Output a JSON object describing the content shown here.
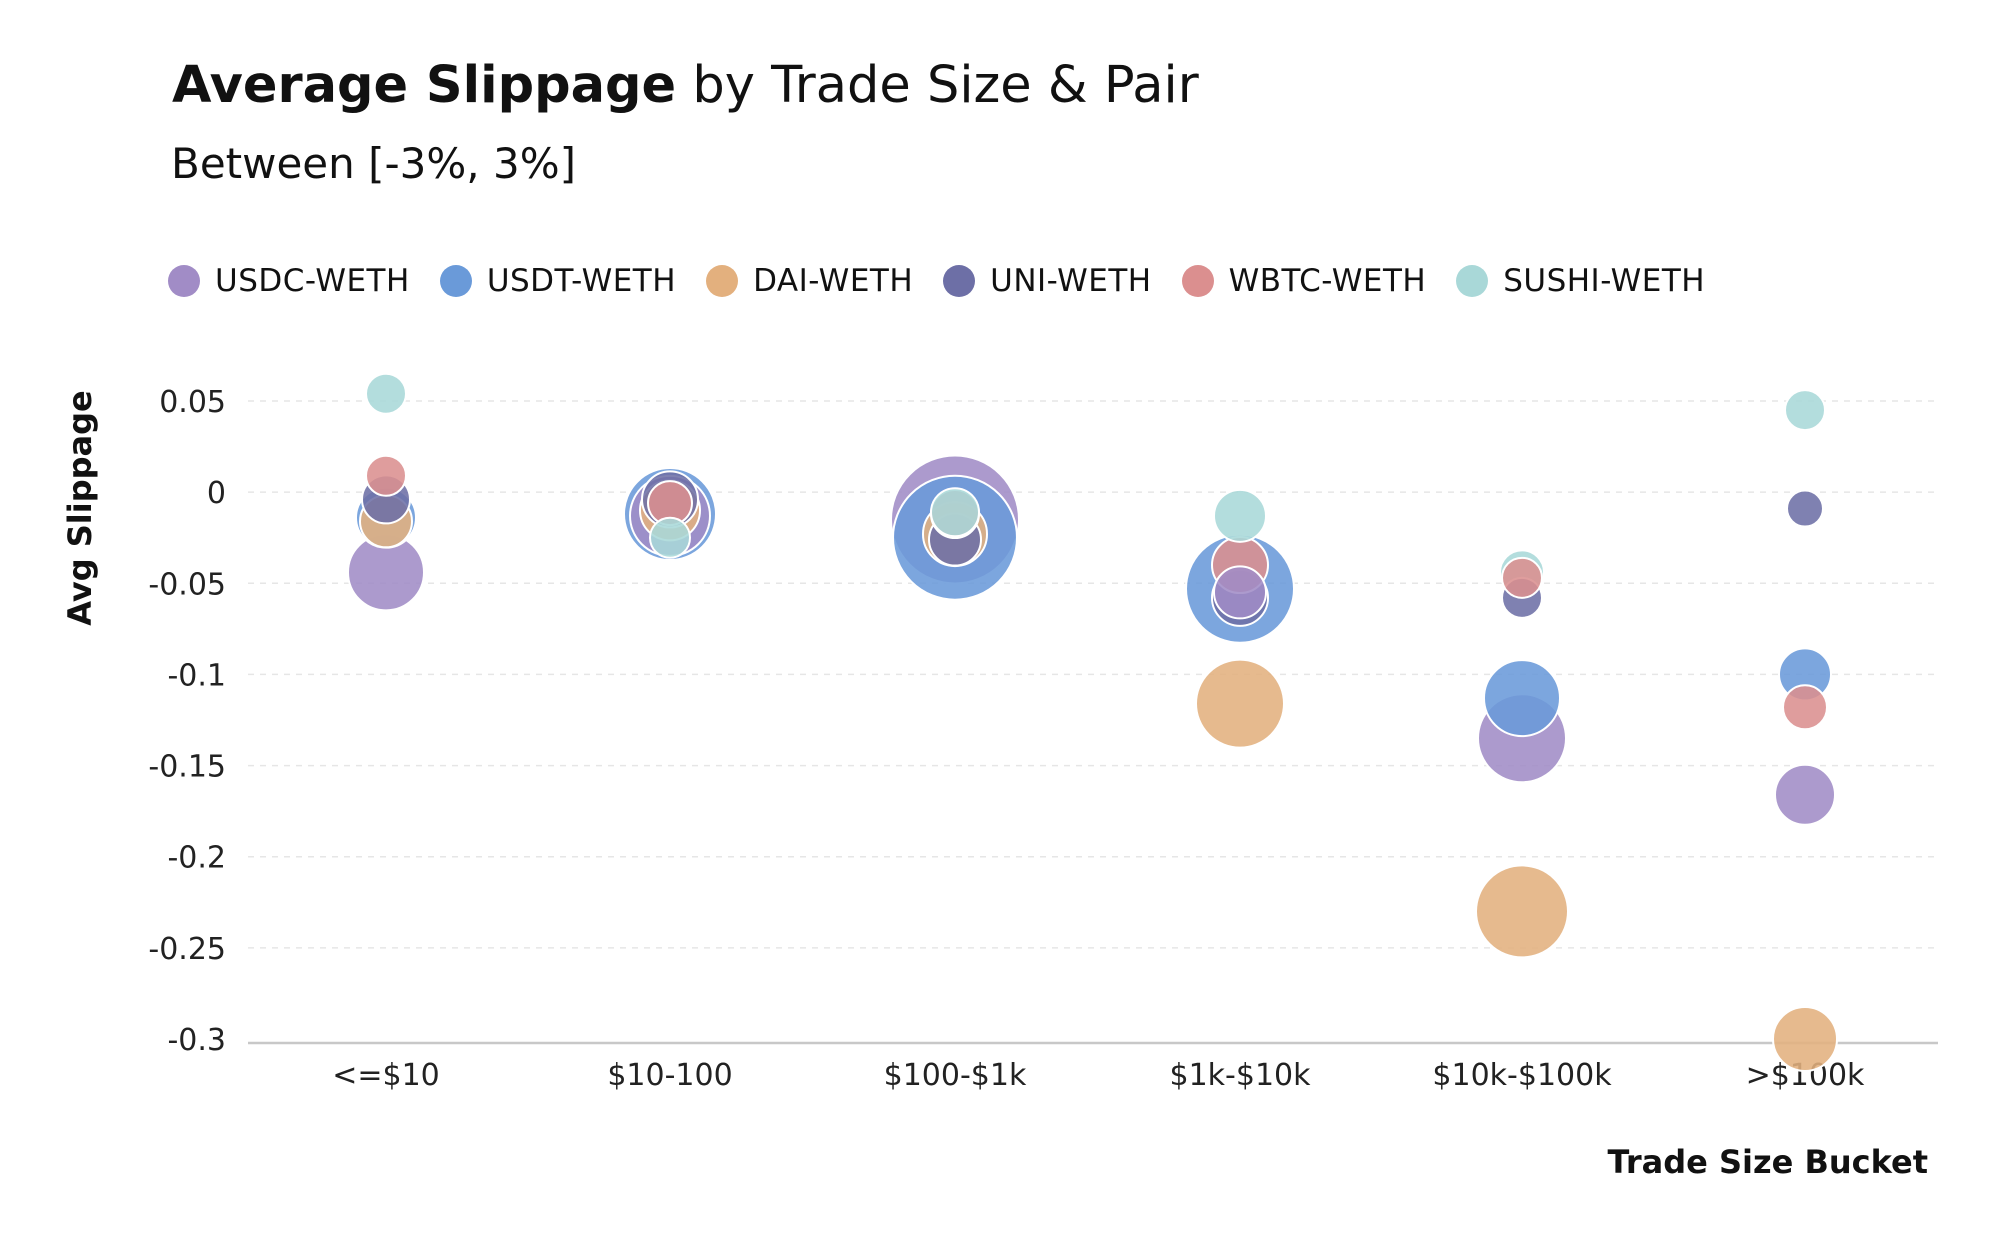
{
  "header": {
    "title_bold": "Average Slippage",
    "title_rest": " by Trade Size & Pair",
    "subtitle": "Between [-3%, 3%]"
  },
  "legend": [
    {
      "label": "USDC-WETH",
      "color": "#a18cc6"
    },
    {
      "label": "USDT-WETH",
      "color": "#6a9ad9"
    },
    {
      "label": "DAI-WETH",
      "color": "#e3b07e"
    },
    {
      "label": "UNI-WETH",
      "color": "#6d6fa6"
    },
    {
      "label": "WBTC-WETH",
      "color": "#db8f8f"
    },
    {
      "label": "SUSHI-WETH",
      "color": "#a9d8d8"
    }
  ],
  "chart_data": {
    "type": "scatter",
    "title": "Average Slippage by Trade Size & Pair",
    "subtitle": "Between [-3%, 3%]",
    "xlabel": "Trade Size Bucket",
    "ylabel": "Avg Slippage",
    "categories": [
      "<=$10",
      "$10-100",
      "$100-$1k",
      "$1k-$10k",
      "$10k-$100k",
      ">$100k"
    ],
    "yticks": [
      "0.05",
      "0",
      "-0.05",
      "-0.1",
      "-0.15",
      "-0.2",
      "-0.25",
      "-0.3"
    ],
    "ylim": [
      -0.3,
      0.05
    ],
    "grid": true,
    "legend_position": "top-left",
    "bubble_size_encoded": true,
    "series": [
      {
        "name": "USDC-WETH",
        "color": "#a18cc6",
        "values": [
          -0.044,
          -0.013,
          -0.015,
          -0.055,
          -0.135,
          -0.166
        ],
        "sizes": [
          38,
          40,
          64,
          26,
          44,
          30
        ]
      },
      {
        "name": "USDT-WETH",
        "color": "#6a9ad9",
        "values": [
          -0.014,
          -0.012,
          -0.025,
          -0.053,
          -0.113,
          -0.1
        ],
        "sizes": [
          30,
          46,
          62,
          54,
          38,
          26
        ]
      },
      {
        "name": "DAI-WETH",
        "color": "#e3b07e",
        "values": [
          -0.016,
          -0.01,
          -0.023,
          -0.116,
          -0.23,
          -0.3
        ],
        "sizes": [
          26,
          30,
          32,
          44,
          46,
          32
        ]
      },
      {
        "name": "UNI-WETH",
        "color": "#6d6fa6",
        "values": [
          -0.004,
          -0.004,
          -0.026,
          -0.058,
          -0.058,
          -0.009
        ],
        "sizes": [
          24,
          28,
          26,
          28,
          20,
          18
        ]
      },
      {
        "name": "WBTC-WETH",
        "color": "#db8f8f",
        "values": [
          0.009,
          -0.006,
          -0.012,
          -0.04,
          -0.047,
          -0.118
        ],
        "sizes": [
          20,
          22,
          24,
          28,
          20,
          22
        ]
      },
      {
        "name": "SUSHI-WETH",
        "color": "#a9d8d8",
        "values": [
          0.054,
          -0.025,
          -0.011,
          -0.013,
          -0.044,
          0.045
        ],
        "sizes": [
          20,
          20,
          24,
          26,
          22,
          20
        ]
      }
    ]
  }
}
